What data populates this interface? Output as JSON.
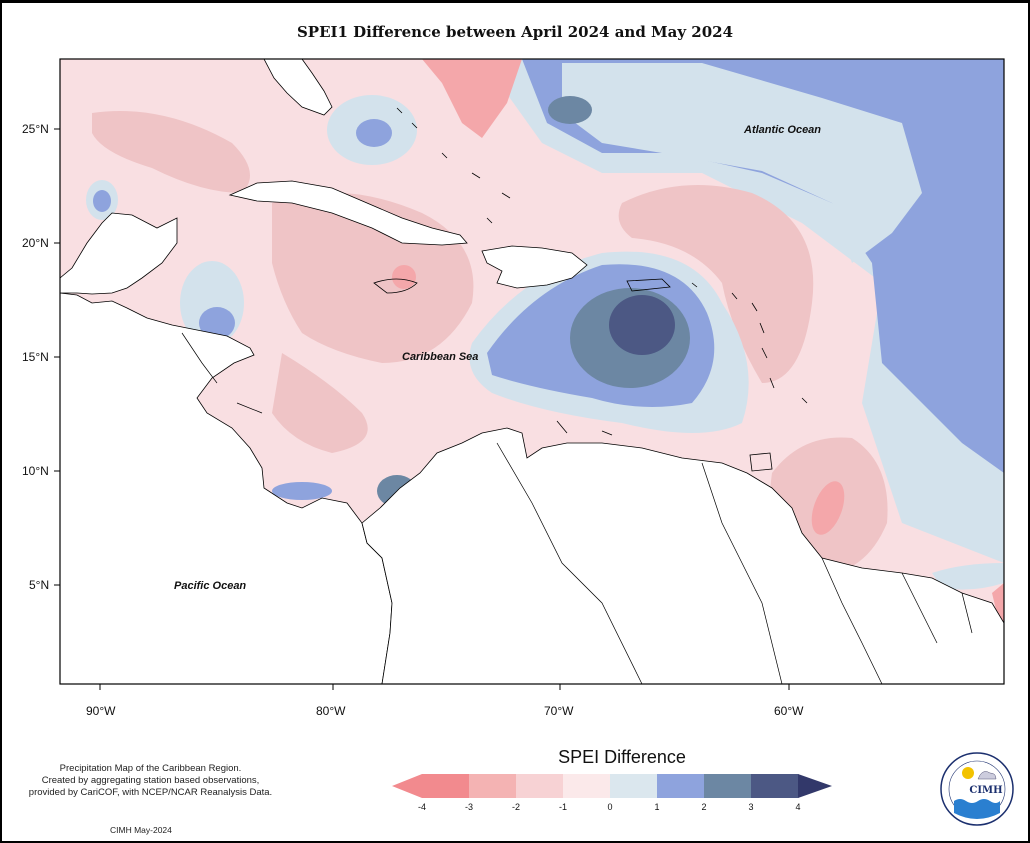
{
  "title": "SPEI1 Difference between April 2024 and May 2024",
  "map": {
    "lat_labels": [
      "25°N",
      "20°N",
      "15°N",
      "10°N",
      "5°N"
    ],
    "lon_labels": [
      "90°W",
      "80°W",
      "70°W",
      "60°W"
    ],
    "ocean_labels": {
      "atlantic": "Atlantic Ocean",
      "caribbean": "Caribbean Sea",
      "pacific": "Pacific Ocean"
    }
  },
  "legend": {
    "title": "SPEI Difference",
    "ticks": [
      "-4",
      "-3",
      "-2",
      "-1",
      "0",
      "1",
      "2",
      "3",
      "4"
    ],
    "colors": [
      "#f28a8e",
      "#f4b3b3",
      "#f7d2d4",
      "#fbe9ea",
      "#dbe7ee",
      "#8ea3dd",
      "#6c87a3",
      "#4c5884",
      "#32386a"
    ]
  },
  "caption": {
    "line1": "Precipitation Map of the Caribbean Region.",
    "line2": "Created by aggregating station based observations,",
    "line3": "provided by CariCOF, with NCEP/NCAR Reanalysis Data."
  },
  "credit": "CIMH May-2024",
  "logo": {
    "text": "CIMH",
    "icon": "cimh-logo-icon"
  }
}
